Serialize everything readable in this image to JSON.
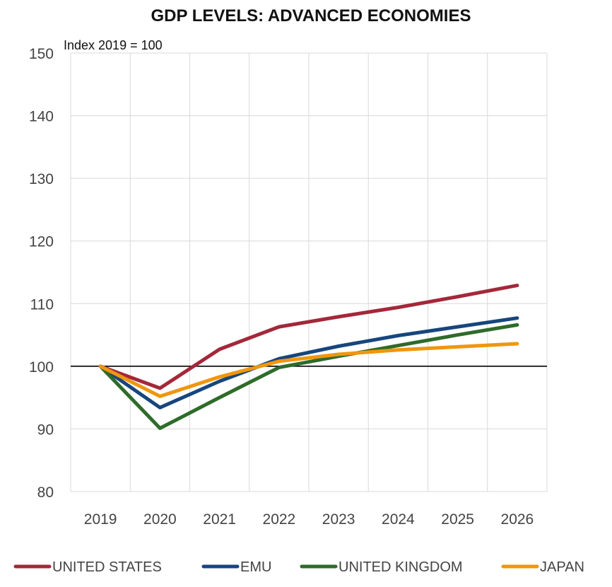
{
  "chart_data": {
    "type": "line",
    "title": "GDP LEVELS: ADVANCED ECONOMIES",
    "unit_label": "Index 2019 = 100",
    "xlabel": "",
    "ylabel": "",
    "categories": [
      "2019",
      "2020",
      "2021",
      "2022",
      "2023",
      "2024",
      "2025",
      "2026"
    ],
    "ylim": [
      80,
      150
    ],
    "yticks": [
      "80",
      "90",
      "100",
      "110",
      "120",
      "130",
      "140",
      "150"
    ],
    "reference_line": 100,
    "grid": true,
    "legend_position": "bottom",
    "series": [
      {
        "name": "UNITED STATES",
        "color": "#a3283a",
        "values": [
          100,
          96.5,
          102.7,
          106.3,
          107.9,
          109.4,
          111.1,
          112.9
        ]
      },
      {
        "name": "EMU",
        "color": "#17467d",
        "values": [
          100,
          93.4,
          97.6,
          101.2,
          103.2,
          104.9,
          106.3,
          107.7
        ]
      },
      {
        "name": "UNITED KINGDOM",
        "color": "#2e6b2a",
        "values": [
          100,
          90.1,
          95.0,
          99.8,
          101.6,
          103.3,
          105.0,
          106.6
        ]
      },
      {
        "name": "JAPAN",
        "color": "#f0960e",
        "values": [
          100,
          95.2,
          98.3,
          100.8,
          101.9,
          102.6,
          103.1,
          103.6
        ]
      }
    ]
  }
}
